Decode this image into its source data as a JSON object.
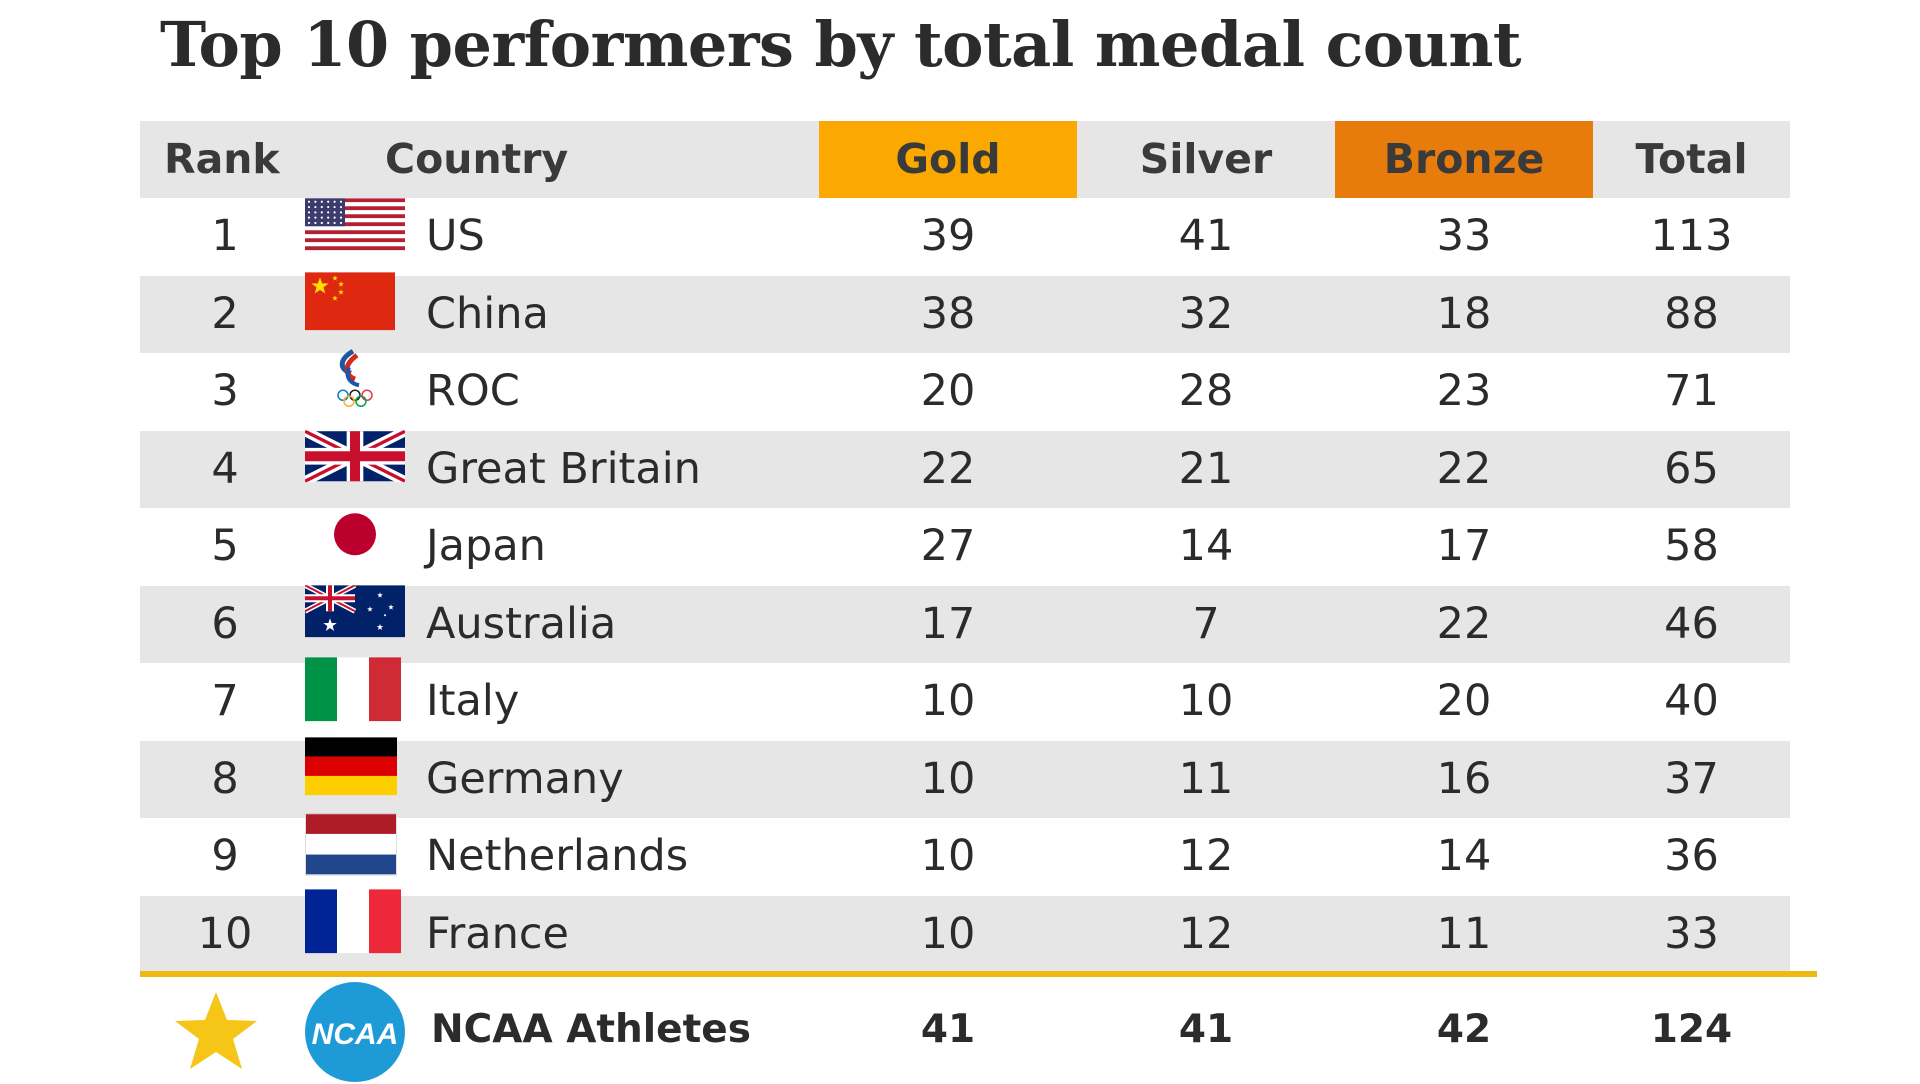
{
  "title": "Top 10 performers by total medal count",
  "header": {
    "rank": "Rank",
    "country": "Country",
    "gold": "Gold",
    "silver": "Silver",
    "bronze": "Bronze",
    "total": "Total"
  },
  "colors": {
    "gold_header": "#fba800",
    "bronze_header": "#e77b0b",
    "row_shade": "#e6e6e6",
    "divider": "#f0b814",
    "ncaa_blue": "#1e9bd7",
    "star": "#f5c518"
  },
  "chart_data": {
    "type": "table",
    "title": "Top 10 performers by total medal count",
    "columns": [
      "Rank",
      "Country",
      "Gold",
      "Silver",
      "Bronze",
      "Total"
    ],
    "rows": [
      {
        "rank": "1",
        "country": "US",
        "flag": "flag-us-icon",
        "gold": 39,
        "silver": 41,
        "bronze": 33,
        "total": 113
      },
      {
        "rank": "2",
        "country": "China",
        "flag": "flag-china-icon",
        "gold": 38,
        "silver": 32,
        "bronze": 18,
        "total": 88
      },
      {
        "rank": "3",
        "country": "ROC",
        "flag": "roc-emblem-icon",
        "gold": 20,
        "silver": 28,
        "bronze": 23,
        "total": 71
      },
      {
        "rank": "4",
        "country": "Great Britain",
        "flag": "flag-uk-icon",
        "gold": 22,
        "silver": 21,
        "bronze": 22,
        "total": 65
      },
      {
        "rank": "5",
        "country": "Japan",
        "flag": "flag-japan-icon",
        "gold": 27,
        "silver": 14,
        "bronze": 17,
        "total": 58
      },
      {
        "rank": "6",
        "country": "Australia",
        "flag": "flag-australia-icon",
        "gold": 17,
        "silver": 7,
        "bronze": 22,
        "total": 46
      },
      {
        "rank": "7",
        "country": "Italy",
        "flag": "flag-italy-icon",
        "gold": 10,
        "silver": 10,
        "bronze": 20,
        "total": 40
      },
      {
        "rank": "8",
        "country": "Germany",
        "flag": "flag-germany-icon",
        "gold": 10,
        "silver": 11,
        "bronze": 16,
        "total": 37
      },
      {
        "rank": "9",
        "country": "Netherlands",
        "flag": "flag-netherlands-icon",
        "gold": 10,
        "silver": 12,
        "bronze": 14,
        "total": 36
      },
      {
        "rank": "10",
        "country": "France",
        "flag": "flag-france-icon",
        "gold": 10,
        "silver": 12,
        "bronze": 11,
        "total": 33
      }
    ],
    "footer": {
      "icon": "star-icon",
      "logo": "ncaa-logo-icon",
      "logo_text": "NCAA",
      "country": "NCAA Athletes",
      "gold": 41,
      "silver": 41,
      "bronze": 42,
      "total": 124
    }
  }
}
